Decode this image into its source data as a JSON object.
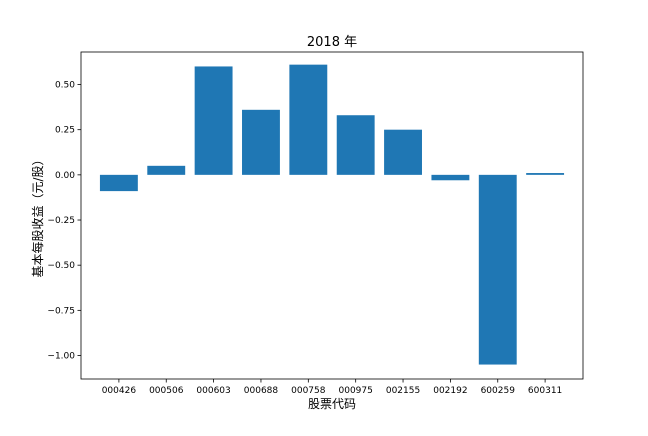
{
  "chart_data": {
    "type": "bar",
    "title": "2018 年",
    "xlabel": "股票代码",
    "ylabel": "基本每股收益（元/股）",
    "categories": [
      "000426",
      "000506",
      "000603",
      "000688",
      "000758",
      "000975",
      "002155",
      "002192",
      "600259",
      "600311"
    ],
    "values": [
      -0.09,
      0.05,
      0.6,
      0.36,
      0.61,
      0.33,
      0.25,
      -0.03,
      -1.05,
      0.01
    ],
    "ylim": [
      -1.13,
      0.68
    ],
    "yticks": [
      0.5,
      0.25,
      0.0,
      -0.25,
      -0.5,
      -0.75,
      -1.0
    ],
    "ytick_labels": [
      "0.50",
      "0.25",
      "0.00",
      "−0.25",
      "−0.50",
      "−0.75",
      "−1.00"
    ],
    "bar_color": "#1f77b4",
    "grid": false,
    "legend": "none"
  }
}
